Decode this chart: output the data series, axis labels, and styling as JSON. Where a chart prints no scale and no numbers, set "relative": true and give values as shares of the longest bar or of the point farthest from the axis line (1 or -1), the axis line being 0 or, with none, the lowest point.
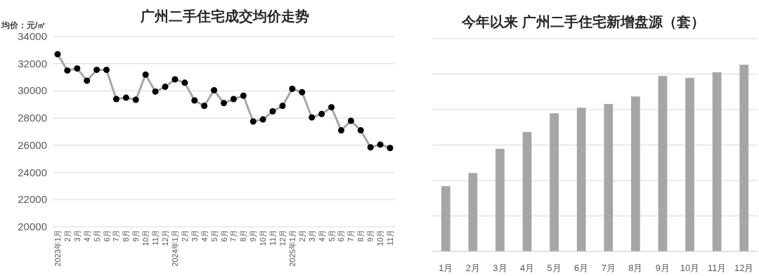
{
  "chart_data": [
    {
      "type": "line",
      "title": "广州二手住宅成交均价走势",
      "ylabel": "均价：元/㎡",
      "categories": [
        "2023年1月",
        "2月",
        "3月",
        "4月",
        "5月",
        "6月",
        "7月",
        "8月",
        "9月",
        "10月",
        "11月",
        "12月",
        "2024年1月",
        "2月",
        "3月",
        "4月",
        "5月",
        "6月",
        "7月",
        "8月",
        "9月",
        "10月",
        "11月",
        "12月",
        "2025年1月",
        "2月",
        "3月",
        "4月",
        "5月",
        "6月",
        "7月",
        "8月",
        "9月",
        "10月",
        "11月"
      ],
      "series": [
        {
          "color": "#a6a6a6",
          "values": [
            32700,
            31500,
            31650,
            30750,
            31550,
            31550,
            29400,
            29500,
            29350,
            31200,
            29950,
            30300,
            30850,
            30600,
            29300,
            28900,
            30050,
            29100,
            29400,
            29650,
            27750,
            27900,
            28500,
            28900,
            30150,
            29900,
            28050,
            28300,
            28800,
            27100,
            27800,
            27100,
            25850,
            26050,
            25800
          ]
        }
      ],
      "ylim": [
        20000,
        34000
      ],
      "yticks": [
        20000,
        22000,
        24000,
        26000,
        28000,
        30000,
        32000,
        34000
      ],
      "grid": "y",
      "marker": "circle",
      "line_style": "solid"
    },
    {
      "type": "bar",
      "title": "今年以来  广州二手住宅新增盘源（套）",
      "relative": true,
      "categories": [
        "1月",
        "2月",
        "3月",
        "4月",
        "5月",
        "6月",
        "7月",
        "8月",
        "9月",
        "10月",
        "11月",
        "12月"
      ],
      "series": [
        {
          "color": "#a6a6a6",
          "values": [
            0.35,
            0.42,
            0.55,
            0.64,
            0.74,
            0.77,
            0.79,
            0.83,
            0.94,
            0.93,
            0.96,
            1
          ]
        }
      ],
      "grid": "y"
    }
  ]
}
